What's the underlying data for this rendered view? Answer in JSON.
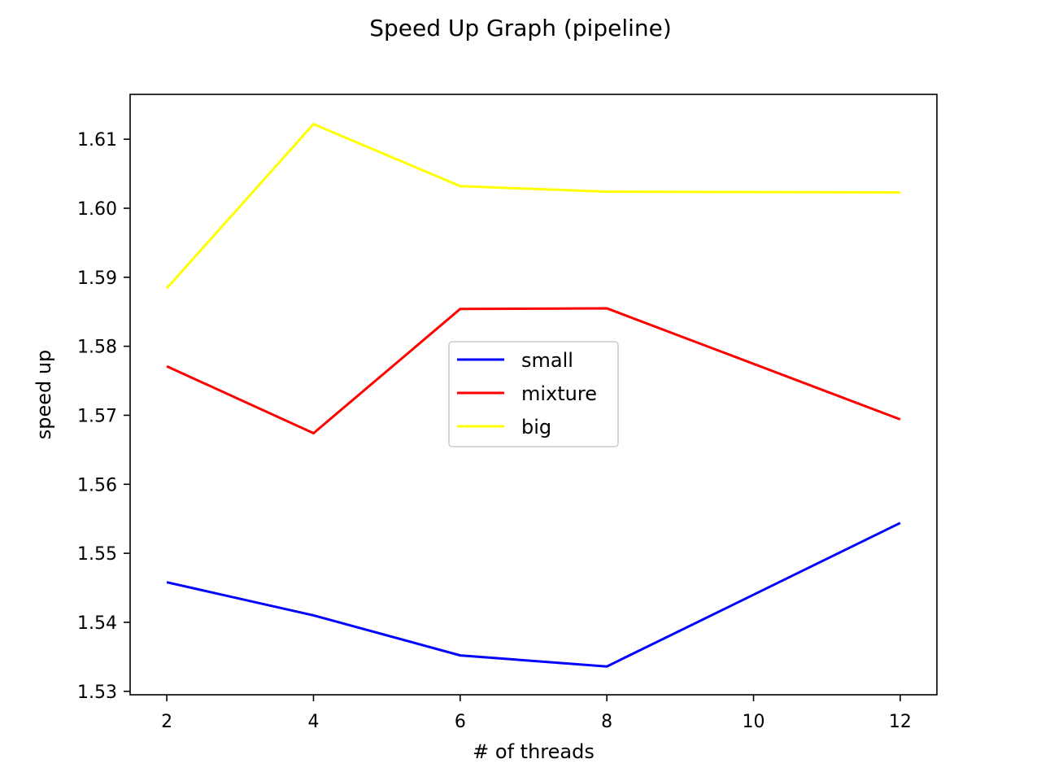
{
  "chart_data": {
    "type": "line",
    "title": "Speed Up Graph (pipeline)",
    "xlabel": "# of threads",
    "ylabel": "speed up",
    "x": [
      2,
      4,
      6,
      8,
      12
    ],
    "xlim": [
      1.5,
      12.5
    ],
    "ylim": [
      1.5295,
      1.6165
    ],
    "xticks": [
      2,
      4,
      6,
      8,
      10,
      12
    ],
    "xtick_labels": [
      "2",
      "4",
      "6",
      "8",
      "10",
      "12"
    ],
    "yticks": [
      1.53,
      1.54,
      1.55,
      1.56,
      1.57,
      1.58,
      1.59,
      1.6,
      1.61
    ],
    "ytick_labels": [
      "1.53",
      "1.54",
      "1.55",
      "1.56",
      "1.57",
      "1.58",
      "1.59",
      "1.60",
      "1.61"
    ],
    "grid": false,
    "legend_position": "center",
    "series": [
      {
        "name": "small",
        "color": "#0000ff",
        "values": [
          1.5458,
          1.541,
          1.5352,
          1.5336,
          1.5544
        ]
      },
      {
        "name": "mixture",
        "color": "#ff0000",
        "values": [
          1.5771,
          1.5674,
          1.5854,
          1.5855,
          1.5694
        ]
      },
      {
        "name": "big",
        "color": "#ffff00",
        "values": [
          1.5884,
          1.6122,
          1.6032,
          1.6024,
          1.6023
        ]
      }
    ]
  }
}
